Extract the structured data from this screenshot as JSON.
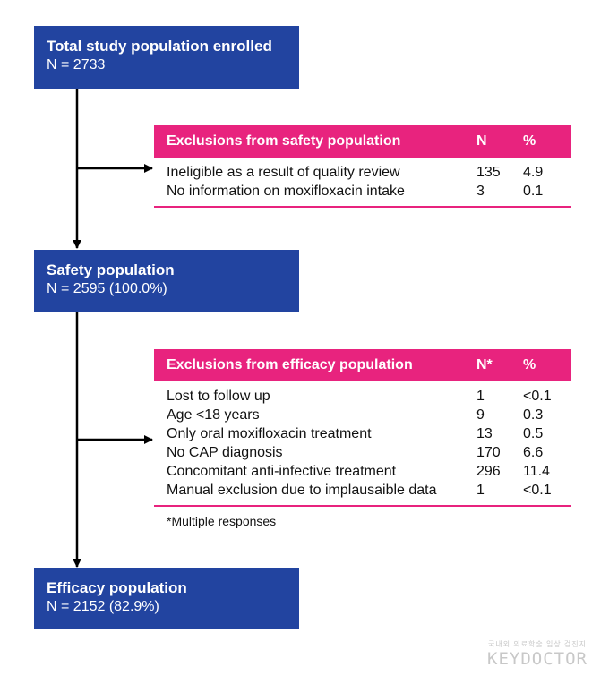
{
  "boxes": {
    "total": {
      "title": "Total study population enrolled",
      "n": "N = 2733"
    },
    "safety": {
      "title": "Safety population",
      "n": "N = 2595 (100.0%)"
    },
    "efficacy": {
      "title": "Efficacy population",
      "n": "N = 2152 (82.9%)"
    }
  },
  "safety_exclusions": {
    "header": {
      "label": "Exclusions from safety population",
      "n": "N",
      "pct": "%"
    },
    "rows": [
      {
        "label": "Ineligible as a result of quality review",
        "n": "135",
        "pct": "4.9"
      },
      {
        "label": "No information on moxifloxacin intake",
        "n": "3",
        "pct": "0.1"
      }
    ]
  },
  "efficacy_exclusions": {
    "header": {
      "label": "Exclusions from efficacy population",
      "n": "N*",
      "pct": "%"
    },
    "rows": [
      {
        "label": "Lost to follow up",
        "n": "1",
        "pct": "<0.1"
      },
      {
        "label": "Age <18 years",
        "n": "9",
        "pct": "0.3"
      },
      {
        "label": "Only oral moxifloxacin treatment",
        "n": "13",
        "pct": "0.5"
      },
      {
        "label": "No CAP diagnosis",
        "n": "170",
        "pct": "6.6"
      },
      {
        "label": "Concomitant anti-infective treatment",
        "n": "296",
        "pct": "11.4"
      },
      {
        "label": "Manual exclusion due to implausaible data",
        "n": "1",
        "pct": "<0.1"
      }
    ],
    "note": "*Multiple responses"
  },
  "watermark": {
    "small": "국내외 의료학술 임상 검진지",
    "logo": "KEYDOCTOR"
  }
}
